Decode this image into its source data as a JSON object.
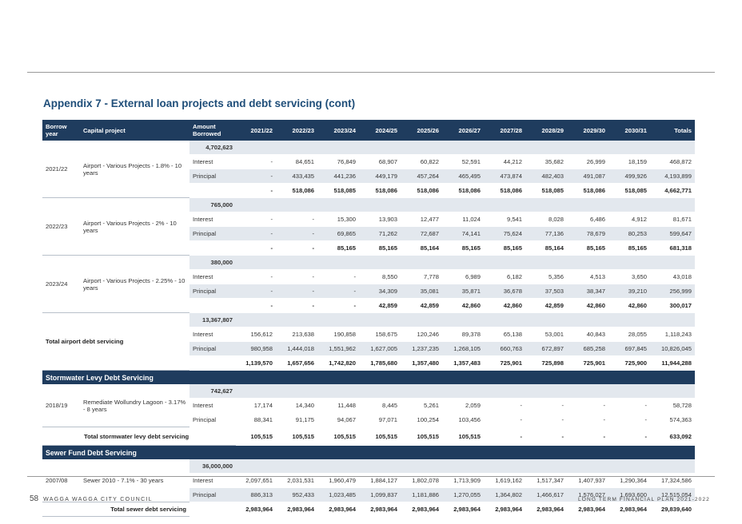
{
  "title": "Appendix 7 - External loan projects and debt servicing (cont)",
  "headers": [
    "Borrow year",
    "Capital project",
    "Amount Borrowed",
    "2021/22",
    "2022/23",
    "2023/24",
    "2024/25",
    "2025/26",
    "2026/27",
    "2027/28",
    "2028/29",
    "2029/30",
    "2030/31",
    "Totals"
  ],
  "groups": [
    {
      "year": "2021/22",
      "project": "Airport - Various Projects - 1.8% - 10 years",
      "amount": "4,702,623",
      "interest": [
        "-",
        "84,651",
        "76,849",
        "68,907",
        "60,822",
        "52,591",
        "44,212",
        "35,682",
        "26,999",
        "18,159",
        "468,872"
      ],
      "principal": [
        "-",
        "433,435",
        "441,236",
        "449,179",
        "457,264",
        "465,495",
        "473,874",
        "482,403",
        "491,087",
        "499,926",
        "4,193,899"
      ],
      "total": [
        "-",
        "518,086",
        "518,085",
        "518,086",
        "518,086",
        "518,086",
        "518,086",
        "518,085",
        "518,086",
        "518,085",
        "4,662,771"
      ]
    },
    {
      "year": "2022/23",
      "project": "Airport - Various Projects - 2% - 10 years",
      "amount": "765,000",
      "interest": [
        "-",
        "-",
        "15,300",
        "13,903",
        "12,477",
        "11,024",
        "9,541",
        "8,028",
        "6,486",
        "4,912",
        "81,671"
      ],
      "principal": [
        "-",
        "-",
        "69,865",
        "71,262",
        "72,687",
        "74,141",
        "75,624",
        "77,136",
        "78,679",
        "80,253",
        "599,647"
      ],
      "total": [
        "-",
        "-",
        "85,165",
        "85,165",
        "85,164",
        "85,165",
        "85,165",
        "85,164",
        "85,165",
        "85,165",
        "681,318"
      ]
    },
    {
      "year": "2023/24",
      "project": "Airport - Various Projects - 2.25% - 10 years",
      "amount": "380,000",
      "interest": [
        "-",
        "-",
        "-",
        "8,550",
        "7,778",
        "6,989",
        "6,182",
        "5,356",
        "4,513",
        "3,650",
        "43,018"
      ],
      "principal": [
        "-",
        "-",
        "-",
        "34,309",
        "35,081",
        "35,871",
        "36,678",
        "37,503",
        "38,347",
        "39,210",
        "256,999"
      ],
      "total": [
        "-",
        "-",
        "-",
        "42,859",
        "42,859",
        "42,860",
        "42,860",
        "42,859",
        "42,860",
        "42,860",
        "300,017"
      ]
    }
  ],
  "airport_total": {
    "label": "Total airport debt servicing",
    "amount": "13,367,807",
    "interest": [
      "156,612",
      "213,638",
      "190,858",
      "158,675",
      "120,246",
      "89,378",
      "65,138",
      "53,001",
      "40,843",
      "28,055",
      "1,118,243"
    ],
    "principal": [
      "980,958",
      "1,444,018",
      "1,551,962",
      "1,627,005",
      "1,237,235",
      "1,268,105",
      "660,763",
      "672,897",
      "685,258",
      "697,845",
      "10,826,045"
    ],
    "total": [
      "1,139,570",
      "1,657,656",
      "1,742,820",
      "1,785,680",
      "1,357,480",
      "1,357,483",
      "725,901",
      "725,898",
      "725,901",
      "725,900",
      "11,944,288"
    ]
  },
  "stormwater": {
    "section": "Stormwater Levy Debt Servicing",
    "year": "2018/19",
    "project": "Remediate Wollundry Lagoon - 3.17% - 8 years",
    "amount": "742,627",
    "interest": [
      "17,174",
      "14,340",
      "11,448",
      "8,445",
      "5,261",
      "2,059",
      "-",
      "-",
      "-",
      "-",
      "58,728"
    ],
    "principal": [
      "88,341",
      "91,175",
      "94,067",
      "97,071",
      "100,254",
      "103,456",
      "-",
      "-",
      "-",
      "-",
      "574,363"
    ],
    "total_label": "Total stormwater levy debt servicing",
    "total": [
      "105,515",
      "105,515",
      "105,515",
      "105,515",
      "105,515",
      "105,515",
      "-",
      "-",
      "-",
      "-",
      "633,092"
    ]
  },
  "sewer": {
    "section": "Sewer Fund Debt Servicing",
    "year": "2007/08",
    "project": "Sewer 2010 - 7.1% - 30 years",
    "amount": "36,000,000",
    "interest": [
      "2,097,651",
      "2,031,531",
      "1,960,479",
      "1,884,127",
      "1,802,078",
      "1,713,909",
      "1,619,162",
      "1,517,347",
      "1,407,937",
      "1,290,364",
      "17,324,586"
    ],
    "principal": [
      "886,313",
      "952,433",
      "1,023,485",
      "1,099,837",
      "1,181,886",
      "1,270,055",
      "1,364,802",
      "1,466,617",
      "1,576,027",
      "1,693,600",
      "12,515,054"
    ],
    "total_label": "Total sewer debt servicing",
    "total": [
      "2,983,964",
      "2,983,964",
      "2,983,964",
      "2,983,964",
      "2,983,964",
      "2,983,964",
      "2,983,964",
      "2,983,964",
      "2,983,964",
      "2,983,964",
      "29,839,640"
    ]
  },
  "row_labels": {
    "interest": "Interest",
    "principal": "Principal"
  },
  "footer": {
    "page": "58",
    "council": "WAGGA WAGGA CITY COUNCIL",
    "plan": "LONG TERM FINANCIAL PLAN 2021-2022"
  }
}
